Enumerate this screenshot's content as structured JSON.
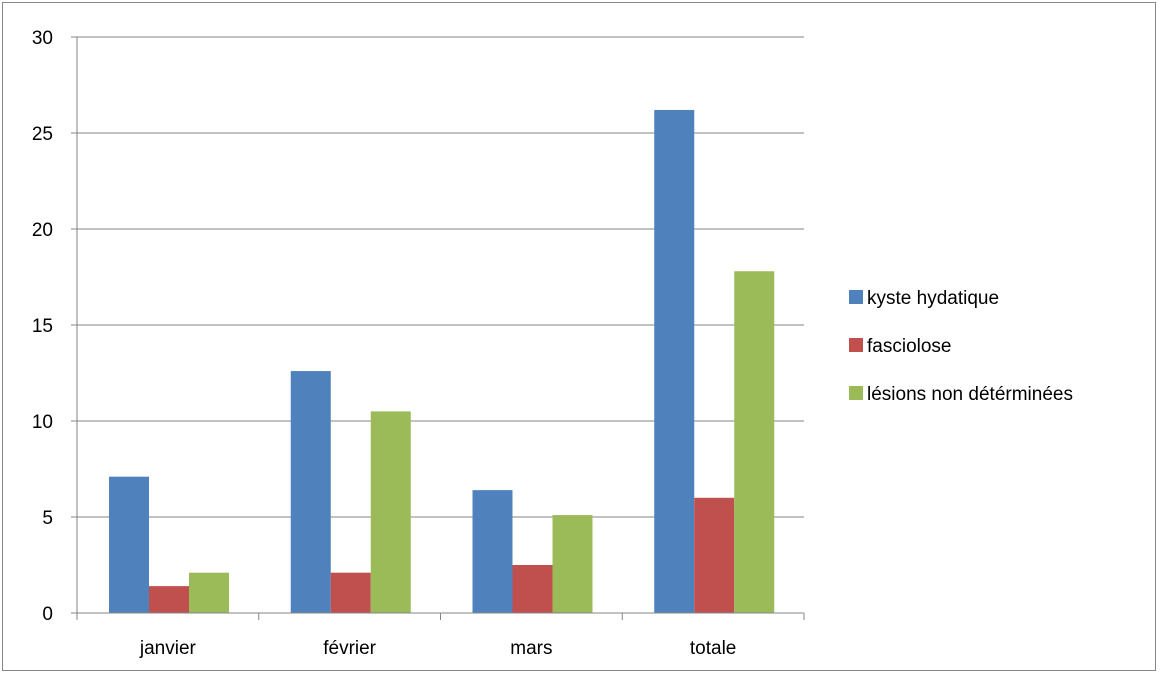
{
  "chart_data": {
    "type": "bar",
    "title": "",
    "xlabel": "",
    "ylabel": "",
    "categories": [
      "janvier",
      "février",
      "mars",
      "totale"
    ],
    "series": [
      {
        "name": "kyste hydatique",
        "color": "#4f81bd",
        "values": [
          7.1,
          12.6,
          6.4,
          26.2
        ]
      },
      {
        "name": "fasciolose",
        "color": "#c0504d",
        "values": [
          1.4,
          2.1,
          2.5,
          6.0
        ]
      },
      {
        "name": "lésions non détérminées",
        "color": "#9bbb59",
        "values": [
          2.1,
          10.5,
          5.1,
          17.8
        ]
      }
    ],
    "ylim": [
      0,
      30
    ],
    "yticks": [
      0,
      5,
      10,
      15,
      20,
      25,
      30
    ],
    "grid": true,
    "legend_position": "right"
  }
}
